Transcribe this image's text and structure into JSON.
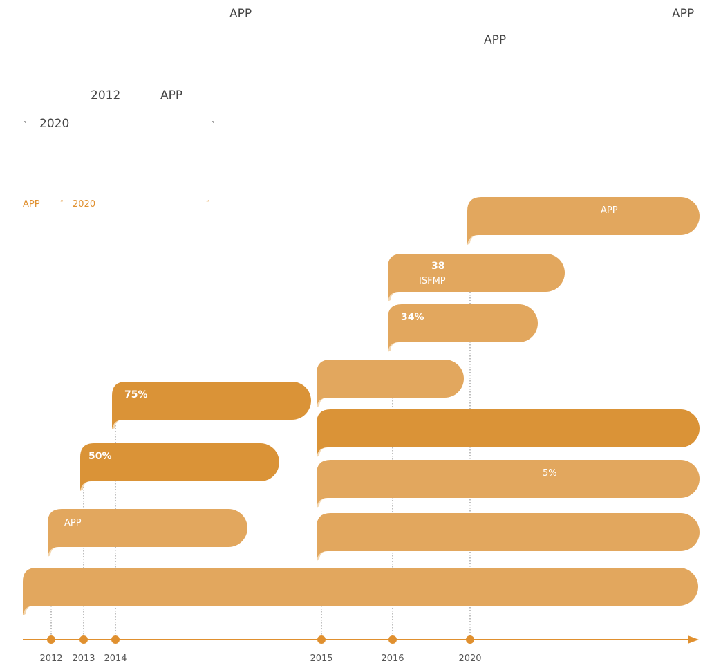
{
  "intro": {
    "line1_app_a": "APP",
    "line1_app_b": "APP",
    "line2_app": "APP",
    "line3_year": "2012",
    "line3_app": "APP",
    "line4_open_quote": "”",
    "line4_year": "2020",
    "line4_close_quote": "”"
  },
  "subtitle": {
    "app": "APP",
    "open_quote": "”",
    "year": "2020",
    "close_quote": "”"
  },
  "timeline": {
    "years": [
      "2012",
      "2013",
      "2014",
      "2015",
      "2016",
      "2020"
    ],
    "bars": [
      {
        "id": "base",
        "start": "2012",
        "color": "#e2a75e",
        "labels": []
      },
      {
        "id": "2012-bar",
        "start": "2012",
        "color": "#e2a75e",
        "labels": [
          "APP"
        ]
      },
      {
        "id": "2013-bar",
        "start": "2013",
        "color": "#da9337",
        "labels": [
          "50%"
        ]
      },
      {
        "id": "2014-bar",
        "start": "2014",
        "color": "#da9337",
        "labels": [
          "75%"
        ]
      },
      {
        "id": "2015-bar-1",
        "start": "2015",
        "color": "#e2a75e",
        "labels": []
      },
      {
        "id": "2015-bar-2",
        "start": "2015",
        "color": "#e2a75e",
        "labels": [
          "5%"
        ]
      },
      {
        "id": "2015-bar-3",
        "start": "2015",
        "color": "#da9337",
        "labels": []
      },
      {
        "id": "2015-bar-4",
        "start": "2015",
        "color": "#e2a75e",
        "labels": []
      },
      {
        "id": "2016-bar-1",
        "start": "2016",
        "color": "#e2a75e",
        "labels": [
          "34%"
        ]
      },
      {
        "id": "2016-bar-2",
        "start": "2016",
        "color": "#e2a75e",
        "labels": [
          "38",
          "ISFMP"
        ]
      },
      {
        "id": "2020-bar",
        "start": "2020",
        "color": "#e2a75e",
        "labels": [
          "APP"
        ]
      }
    ],
    "axis_color": "#e0902f",
    "dot_color": "#e0902f"
  }
}
